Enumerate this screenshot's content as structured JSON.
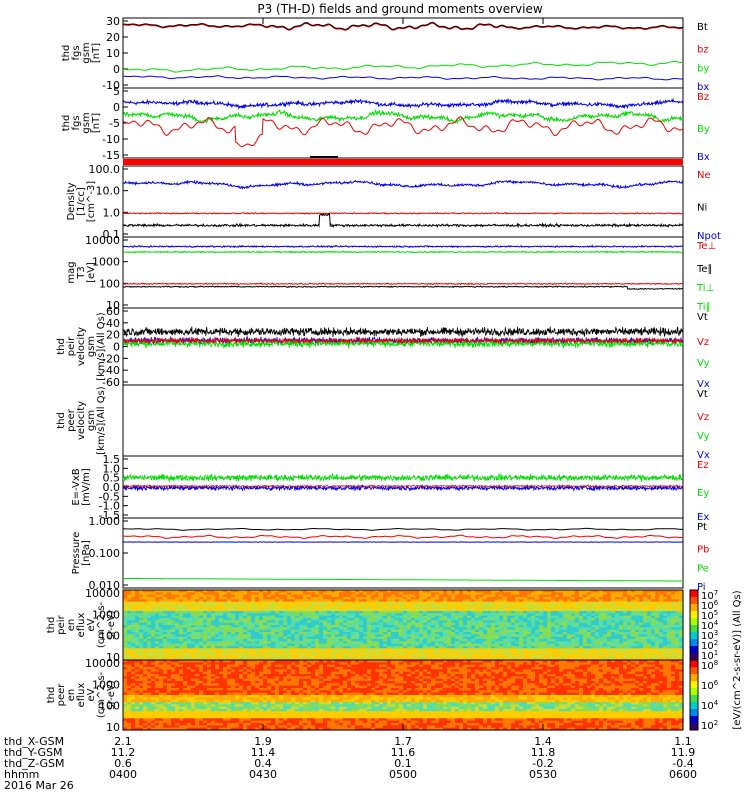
{
  "title": "P3 (TH-D) fields and ground moments overview",
  "colors": {
    "black": "#000000",
    "red": "#ee0000",
    "green": "#00dd00",
    "blue": "#0000ee"
  },
  "panels": [
    {
      "id": "fgs_gsm_mag",
      "ylabel": [
        "thd",
        "fgs",
        "gsm",
        "[nT]"
      ],
      "yticks": [
        "30",
        "20",
        "10",
        "0",
        "-10"
      ],
      "legend": [
        {
          "text": "Bt",
          "color": "black"
        },
        {
          "text": "bz",
          "color": "red"
        },
        {
          "text": "by",
          "color": "green"
        },
        {
          "text": "bx",
          "color": "blue"
        }
      ]
    },
    {
      "id": "fgs_gsm_comp",
      "ylabel": [
        "thd",
        "fgs",
        "gsm",
        "[nT]"
      ],
      "yticks": [
        "5",
        "0",
        "-5",
        "-10",
        "-15"
      ],
      "legend": [
        {
          "text": "Bz",
          "color": "red"
        },
        {
          "text": "By",
          "color": "green"
        },
        {
          "text": "Bx",
          "color": "blue"
        }
      ]
    },
    {
      "id": "density",
      "ylabel": [
        "Density",
        "[1/cc]",
        "[cm^-3]"
      ],
      "yticks": [
        "100.0",
        "10.0",
        "1.0",
        "0.1"
      ],
      "legend": [
        {
          "text": "Ne",
          "color": "red"
        },
        {
          "text": "Ni",
          "color": "black"
        },
        {
          "text": "Npot",
          "color": "blue"
        }
      ]
    },
    {
      "id": "temperature",
      "ylabel": [
        "mag",
        "T3",
        "[eV]"
      ],
      "yticks": [
        "10000",
        "1000",
        "100",
        "10"
      ],
      "legend": [
        {
          "text": "Te⊥",
          "color": "red"
        },
        {
          "text": "Te∥",
          "color": "black"
        },
        {
          "text": "Ti⊥",
          "color": "green"
        },
        {
          "text": "Ti∥",
          "color": "green"
        }
      ]
    },
    {
      "id": "peir_velocity",
      "ylabel": [
        "thd",
        "peir",
        "velocity",
        "gsm",
        "[km/s](All Qs)"
      ],
      "yticks": [
        "60",
        "40",
        "20",
        "0",
        "-20",
        "-40",
        "-60"
      ],
      "legend": [
        {
          "text": "Vt",
          "color": "black"
        },
        {
          "text": "Vz",
          "color": "red"
        },
        {
          "text": "Vy",
          "color": "green"
        },
        {
          "text": "Vx",
          "color": "blue"
        }
      ]
    },
    {
      "id": "peer_velocity",
      "ylabel": [
        "thd",
        "peer",
        "velocity",
        "gsm",
        "[km/s](All Qs)"
      ],
      "yticks": [],
      "legend": [
        {
          "text": "Vt",
          "color": "black"
        },
        {
          "text": "Vz",
          "color": "red"
        },
        {
          "text": "Vy",
          "color": "green"
        },
        {
          "text": "Vx",
          "color": "blue"
        }
      ]
    },
    {
      "id": "efield",
      "ylabel": [
        "E=-VxB",
        "[mV/m]"
      ],
      "yticks": [
        "1.5",
        "1.0",
        "0.5",
        "0.0",
        "-0.5",
        "-1.0",
        "-1.5"
      ],
      "legend": [
        {
          "text": "Ez",
          "color": "red"
        },
        {
          "text": "Ey",
          "color": "green"
        },
        {
          "text": "Ex",
          "color": "blue"
        }
      ]
    },
    {
      "id": "pressure",
      "ylabel": [
        "Pressure",
        "[nPa]"
      ],
      "yticks": [
        "1.000",
        "0.100",
        "0.010"
      ],
      "legend": [
        {
          "text": "Pt",
          "color": "black"
        },
        {
          "text": "Pb",
          "color": "red"
        },
        {
          "text": "Pe",
          "color": "green"
        },
        {
          "text": "Pi",
          "color": "blue"
        }
      ]
    },
    {
      "id": "peir_eflux",
      "ylabel": [
        "thd",
        "peir",
        "en",
        "eflux",
        "eV",
        "(cm^2-s-",
        "sr-eV)"
      ],
      "yticks": [
        "10000",
        "1000",
        "100",
        "10"
      ]
    },
    {
      "id": "peer_eflux",
      "ylabel": [
        "thd",
        "peer",
        "en",
        "eflux",
        "eV",
        "(cm^2-s-",
        "sr-eV)"
      ],
      "yticks": [
        "10000",
        "1000",
        "100",
        "10"
      ]
    }
  ],
  "colorbars": [
    {
      "ticks": [
        "10^7",
        "10^6",
        "10^5",
        "10^4",
        "10^3",
        "10^2",
        "10^1"
      ]
    },
    {
      "ticks": [
        "10^8",
        "10^6",
        "10^4",
        "10^2"
      ]
    }
  ],
  "colorbar_unit": "[eV/(cm^2-s-sr-eV)] (All Qs)",
  "xaxis": {
    "rows": [
      {
        "label": "thd_X-GSM",
        "values": [
          "2.1",
          "1.9",
          "1.7",
          "1.4",
          "1.1"
        ]
      },
      {
        "label": "thd_Y-GSM",
        "values": [
          "11.2",
          "11.4",
          "11.6",
          "11.8",
          "11.9"
        ]
      },
      {
        "label": "thd_Z-GSM",
        "values": [
          "0.6",
          "0.4",
          "0.1",
          "-0.2",
          "-0.4"
        ]
      },
      {
        "label": "hhmm",
        "values": [
          "0400",
          "0430",
          "0500",
          "0530",
          "0600"
        ]
      }
    ],
    "date": "2016 Mar 26"
  },
  "chart_data": {
    "type": "line",
    "title": "P3 (TH-D) fields and ground moments overview",
    "x": [
      "0400",
      "0430",
      "0500",
      "0530",
      "0600"
    ],
    "xlabel": "hhmm",
    "series": [
      {
        "name": "Bt",
        "values": [
          27,
          24,
          26,
          24,
          22
        ]
      },
      {
        "name": "bz",
        "values": [
          26,
          23,
          25,
          23,
          21
        ]
      },
      {
        "name": "by",
        "values": [
          -1,
          3,
          4,
          5,
          4
        ]
      },
      {
        "name": "bx",
        "values": [
          -6,
          -4,
          -5,
          -5,
          -6
        ]
      },
      {
        "name": "Ne",
        "values": [
          20,
          25,
          20,
          15,
          20
        ]
      },
      {
        "name": "Ni",
        "values": [
          0.8,
          0.9,
          0.8,
          0.9,
          1.0
        ]
      },
      {
        "name": "Npot",
        "values": [
          0.25,
          0.2,
          0.25,
          0.25,
          0.3
        ]
      }
    ]
  }
}
